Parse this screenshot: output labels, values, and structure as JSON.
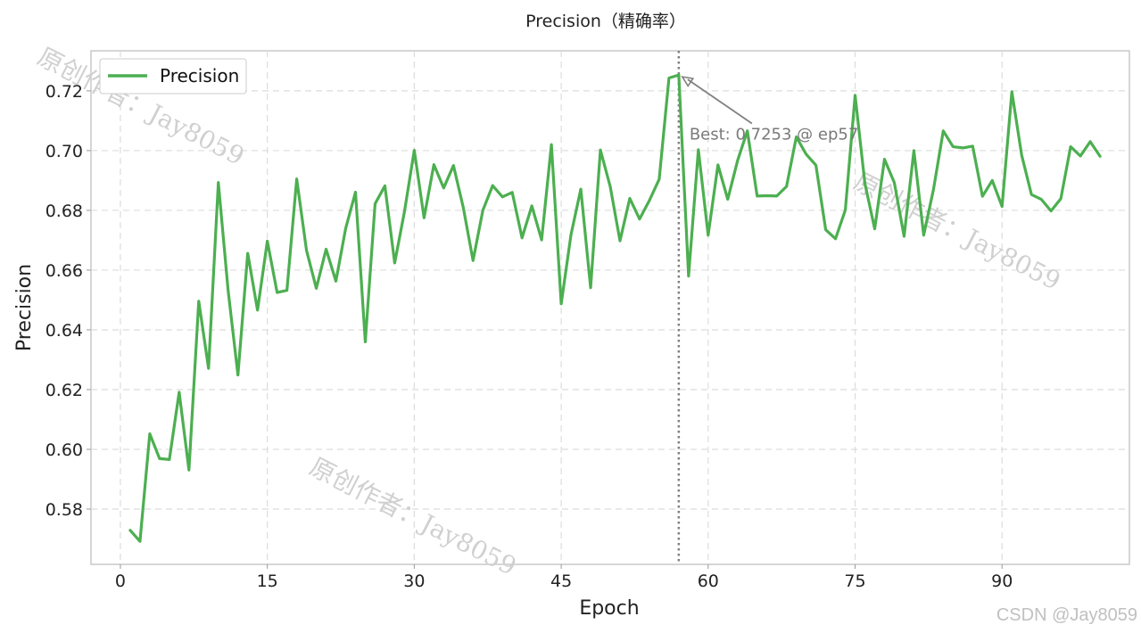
{
  "chart_data": {
    "type": "line",
    "title": "Precision（精确率）",
    "xlabel": "Epoch",
    "ylabel": "Precision",
    "xlim": [
      -3,
      103
    ],
    "ylim": [
      0.5615,
      0.7334
    ],
    "xticks": [
      0,
      15,
      30,
      45,
      60,
      75,
      90
    ],
    "yticks": [
      0.58,
      0.6,
      0.62,
      0.64,
      0.66,
      0.68,
      0.7,
      0.72
    ],
    "ytick_labels": [
      "0.58",
      "0.60",
      "0.62",
      "0.64",
      "0.66",
      "0.68",
      "0.70",
      "0.72"
    ],
    "grid": true,
    "legend_position": "top-left",
    "series": [
      {
        "name": "Precision",
        "color": "#4caf50",
        "x": [
          1,
          2,
          3,
          4,
          5,
          6,
          7,
          8,
          9,
          10,
          11,
          12,
          13,
          14,
          15,
          16,
          17,
          18,
          19,
          20,
          21,
          22,
          23,
          24,
          25,
          26,
          27,
          28,
          29,
          30,
          31,
          32,
          33,
          34,
          35,
          36,
          37,
          38,
          39,
          40,
          41,
          42,
          43,
          44,
          45,
          46,
          47,
          48,
          49,
          50,
          51,
          52,
          53,
          54,
          55,
          56,
          57,
          58,
          59,
          60,
          61,
          62,
          63,
          64,
          65,
          66,
          67,
          68,
          69,
          70,
          71,
          72,
          73,
          74,
          75,
          76,
          77,
          78,
          79,
          80,
          81,
          82,
          83,
          84,
          85,
          86,
          87,
          88,
          89,
          90,
          91,
          92,
          93,
          94,
          95,
          96,
          97,
          98,
          99,
          100
        ],
        "y": [
          0.5729,
          0.5692,
          0.6052,
          0.5969,
          0.5966,
          0.6191,
          0.5931,
          0.6496,
          0.6271,
          0.6893,
          0.6531,
          0.6249,
          0.6656,
          0.6466,
          0.6697,
          0.6525,
          0.6532,
          0.6905,
          0.6666,
          0.6539,
          0.667,
          0.6563,
          0.674,
          0.6861,
          0.636,
          0.6822,
          0.6882,
          0.6624,
          0.6796,
          0.7001,
          0.6775,
          0.6953,
          0.6875,
          0.695,
          0.681,
          0.6632,
          0.68,
          0.6883,
          0.6845,
          0.686,
          0.6708,
          0.6815,
          0.6701,
          0.702,
          0.6487,
          0.6719,
          0.6871,
          0.6541,
          0.7002,
          0.688,
          0.6698,
          0.684,
          0.6771,
          0.6833,
          0.6904,
          0.7243,
          0.7253,
          0.658,
          0.7003,
          0.6717,
          0.6952,
          0.6837,
          0.6966,
          0.7066,
          0.6848,
          0.6849,
          0.6848,
          0.688,
          0.7046,
          0.6988,
          0.6951,
          0.6735,
          0.6705,
          0.6801,
          0.7185,
          0.689,
          0.6738,
          0.6971,
          0.6893,
          0.6713,
          0.7,
          0.6717,
          0.687,
          0.7066,
          0.7013,
          0.7009,
          0.7015,
          0.6847,
          0.69,
          0.6813,
          0.7197,
          0.6985,
          0.6853,
          0.6837,
          0.6798,
          0.6839,
          0.7013,
          0.6982,
          0.703,
          0.6981
        ]
      }
    ],
    "vline": {
      "x": 57,
      "color": "#808080"
    },
    "annotation": {
      "text": "Best: 0.7253 @ ep57",
      "x": 57,
      "y": 0.7253,
      "text_x": 59,
      "text_y": 0.7055
    },
    "watermark_text": "原创作者：Jay8059"
  },
  "page": {
    "credit": "CSDN @Jay8059"
  }
}
